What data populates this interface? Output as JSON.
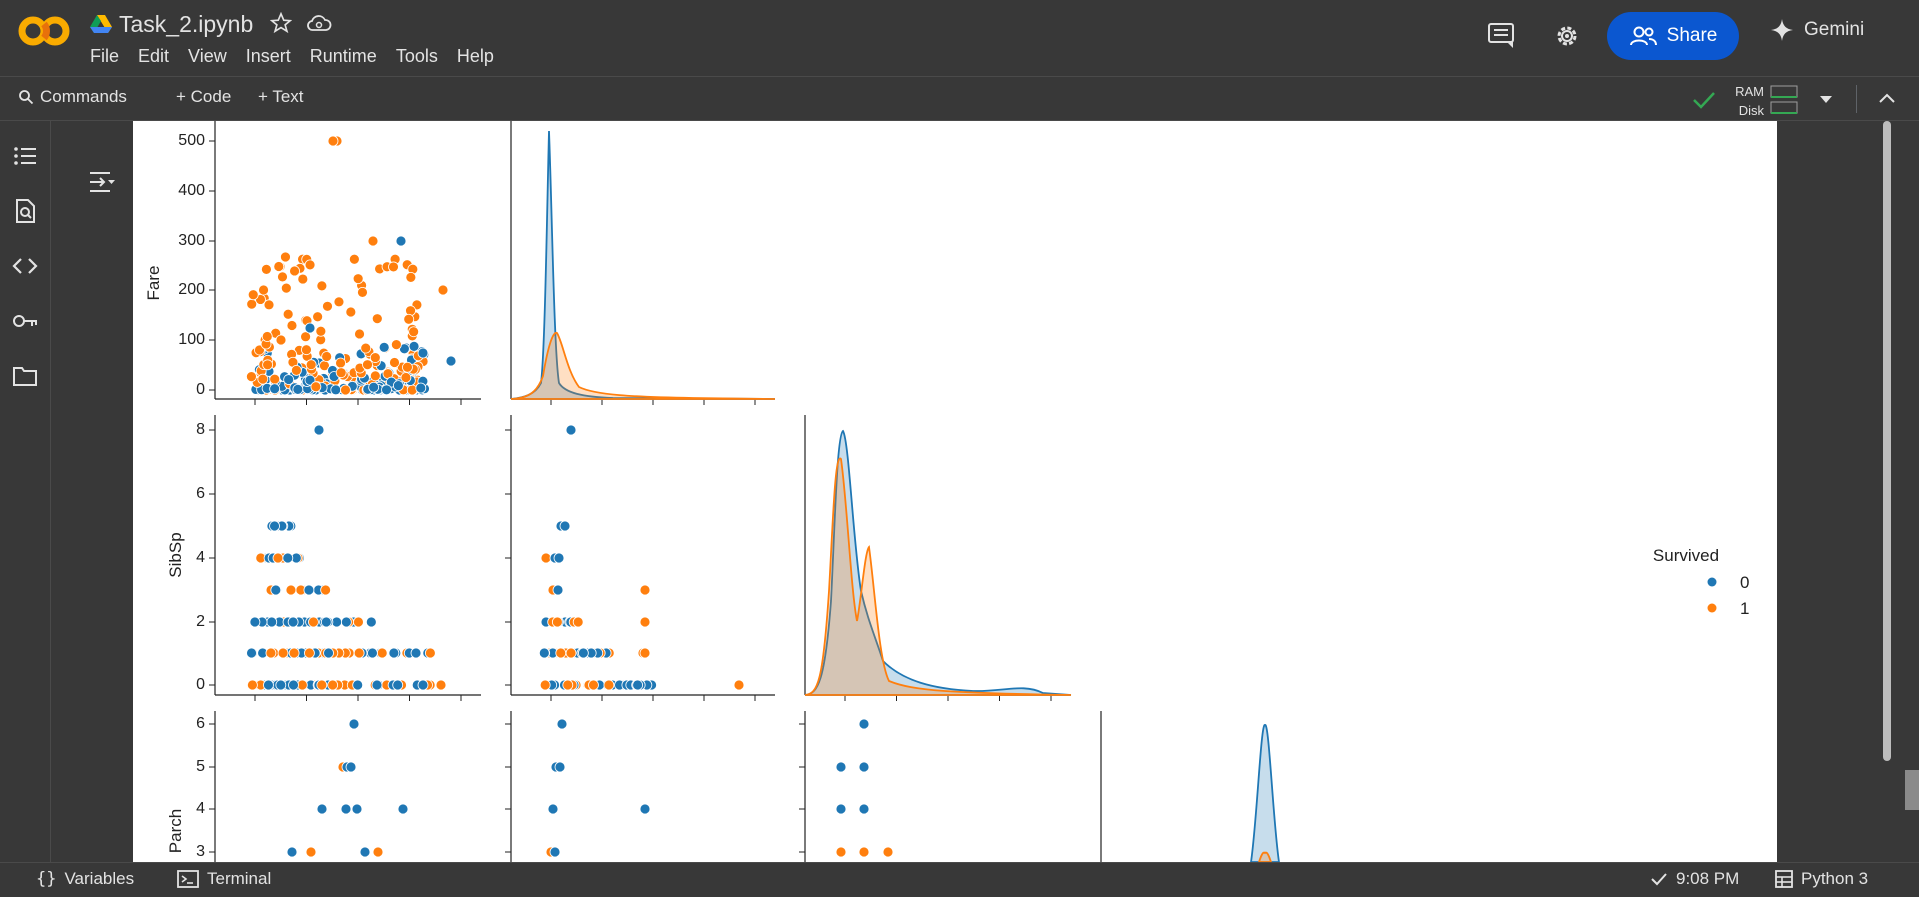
{
  "app": {
    "file_name": "Task_2.ipynb",
    "menu": [
      "File",
      "Edit",
      "View",
      "Insert",
      "Runtime",
      "Tools",
      "Help"
    ],
    "share_label": "Share",
    "gemini_label": "Gemini"
  },
  "toolbar": {
    "commands_label": "Commands",
    "code_label": "+ Code",
    "text_label": "+ Text",
    "ram_label": "RAM",
    "disk_label": "Disk"
  },
  "status": {
    "variables_label": "Variables",
    "terminal_label": "Terminal",
    "time": "9:08 PM",
    "kernel": "Python 3"
  },
  "colors": {
    "class0": "#1f77b4",
    "class1": "#ff7f0e",
    "share": "#0b57d0"
  },
  "chart_data": {
    "type": "scatter",
    "title": "",
    "legend": {
      "title": "Survived",
      "entries": [
        "0",
        "1"
      ],
      "placement": "right"
    },
    "y_labels": [
      "Fare",
      "SibSp",
      "Parch"
    ],
    "fare_ticks": [
      "0",
      "100",
      "200",
      "300",
      "400",
      "500"
    ],
    "sibsp_ticks": [
      "0",
      "2",
      "4",
      "6",
      "8"
    ],
    "parch_ticks": [
      "3",
      "4",
      "5",
      "6"
    ],
    "fare_range": [
      0,
      512
    ],
    "sibsp_range": [
      0,
      8
    ],
    "parch_range": [
      3,
      6
    ]
  }
}
